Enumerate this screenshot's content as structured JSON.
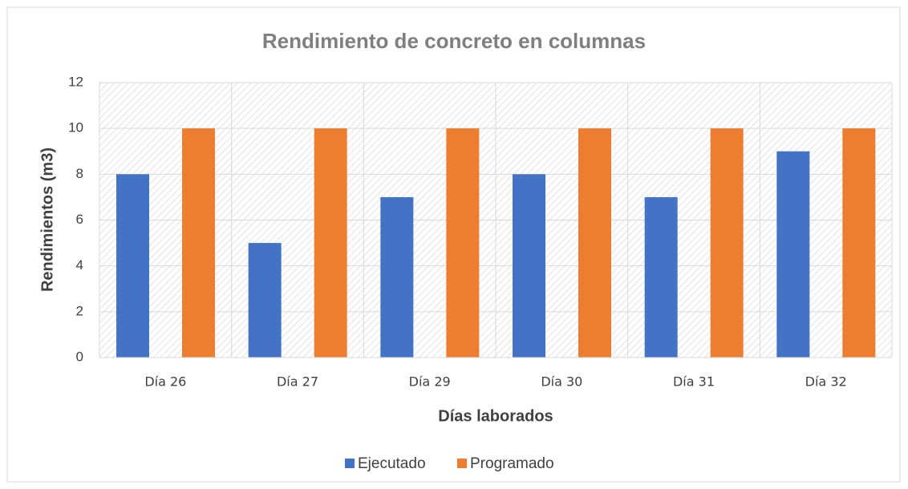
{
  "chart_data": {
    "type": "bar",
    "title": "Rendimiento de concreto en columnas",
    "x_label": "Días laborados",
    "y_label": "Rendimientos (m3)",
    "categories": [
      "Día 26",
      "Día 27",
      "Día 29",
      "Día 30",
      "Día 31",
      "Día 32"
    ],
    "series": [
      {
        "name": "Ejecutado",
        "color": "#4472c4",
        "values": [
          8,
          5,
          7,
          8,
          7,
          9
        ]
      },
      {
        "name": "Programado",
        "color": "#ed7d31",
        "values": [
          10,
          10,
          10,
          10,
          10,
          10
        ]
      }
    ],
    "ylim": [
      0,
      12
    ],
    "yticks": [
      0,
      2,
      4,
      6,
      8,
      10,
      12
    ],
    "grid": true,
    "legend": "bottom"
  }
}
